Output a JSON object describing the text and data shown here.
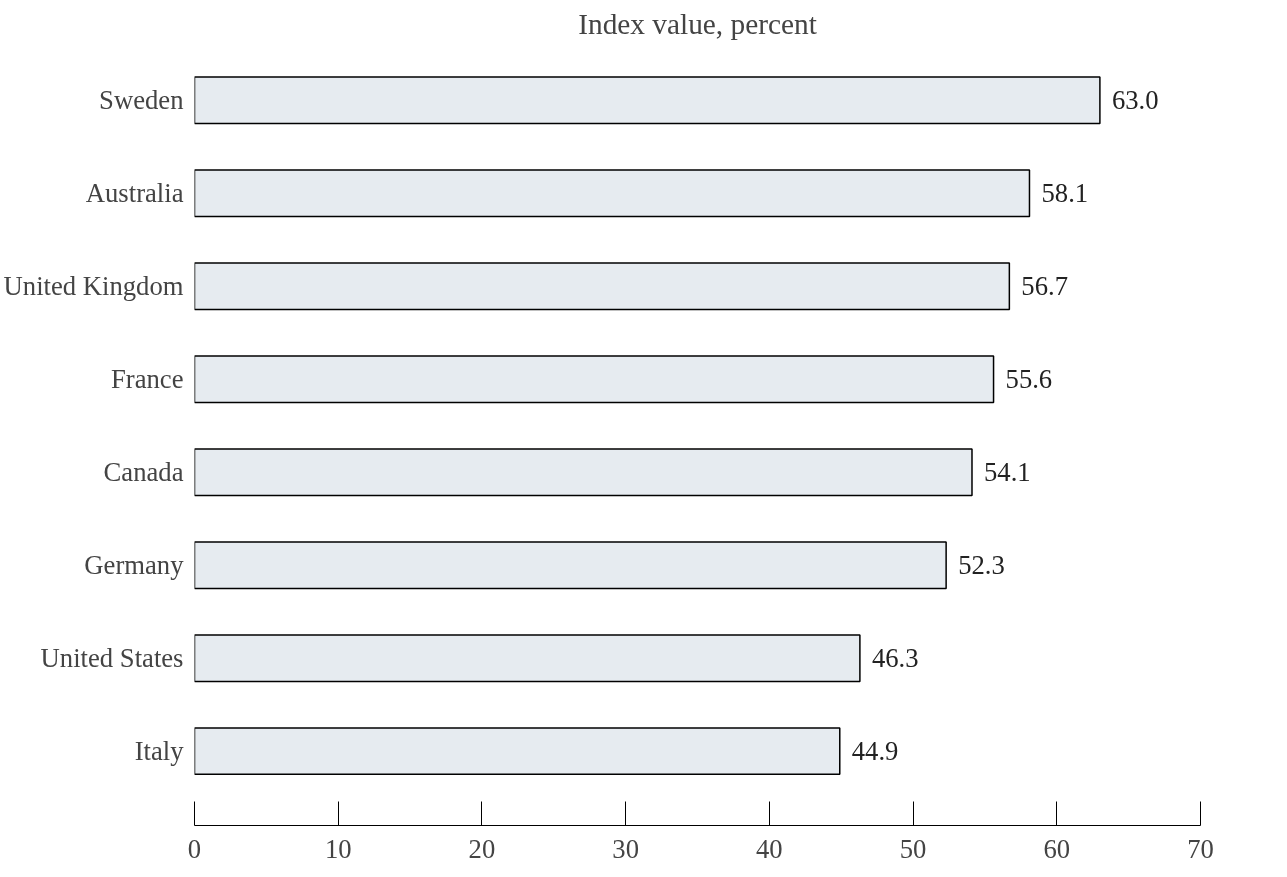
{
  "chart_data": {
    "type": "bar",
    "orientation": "horizontal",
    "title": "Index value, percent",
    "categories": [
      "Sweden",
      "Australia",
      "United Kingdom",
      "France",
      "Canada",
      "Germany",
      "United States",
      "Italy"
    ],
    "values": [
      63.0,
      58.1,
      56.7,
      55.6,
      54.1,
      52.3,
      46.3,
      44.9
    ],
    "value_labels": [
      "63.0",
      "58.1",
      "56.7",
      "55.6",
      "54.1",
      "52.3",
      "46.3",
      "44.9"
    ],
    "color": "#e6ebf0",
    "xlim": [
      0,
      70
    ],
    "xticks": [
      0,
      10,
      20,
      30,
      40,
      50,
      60,
      70
    ],
    "grid": false
  }
}
